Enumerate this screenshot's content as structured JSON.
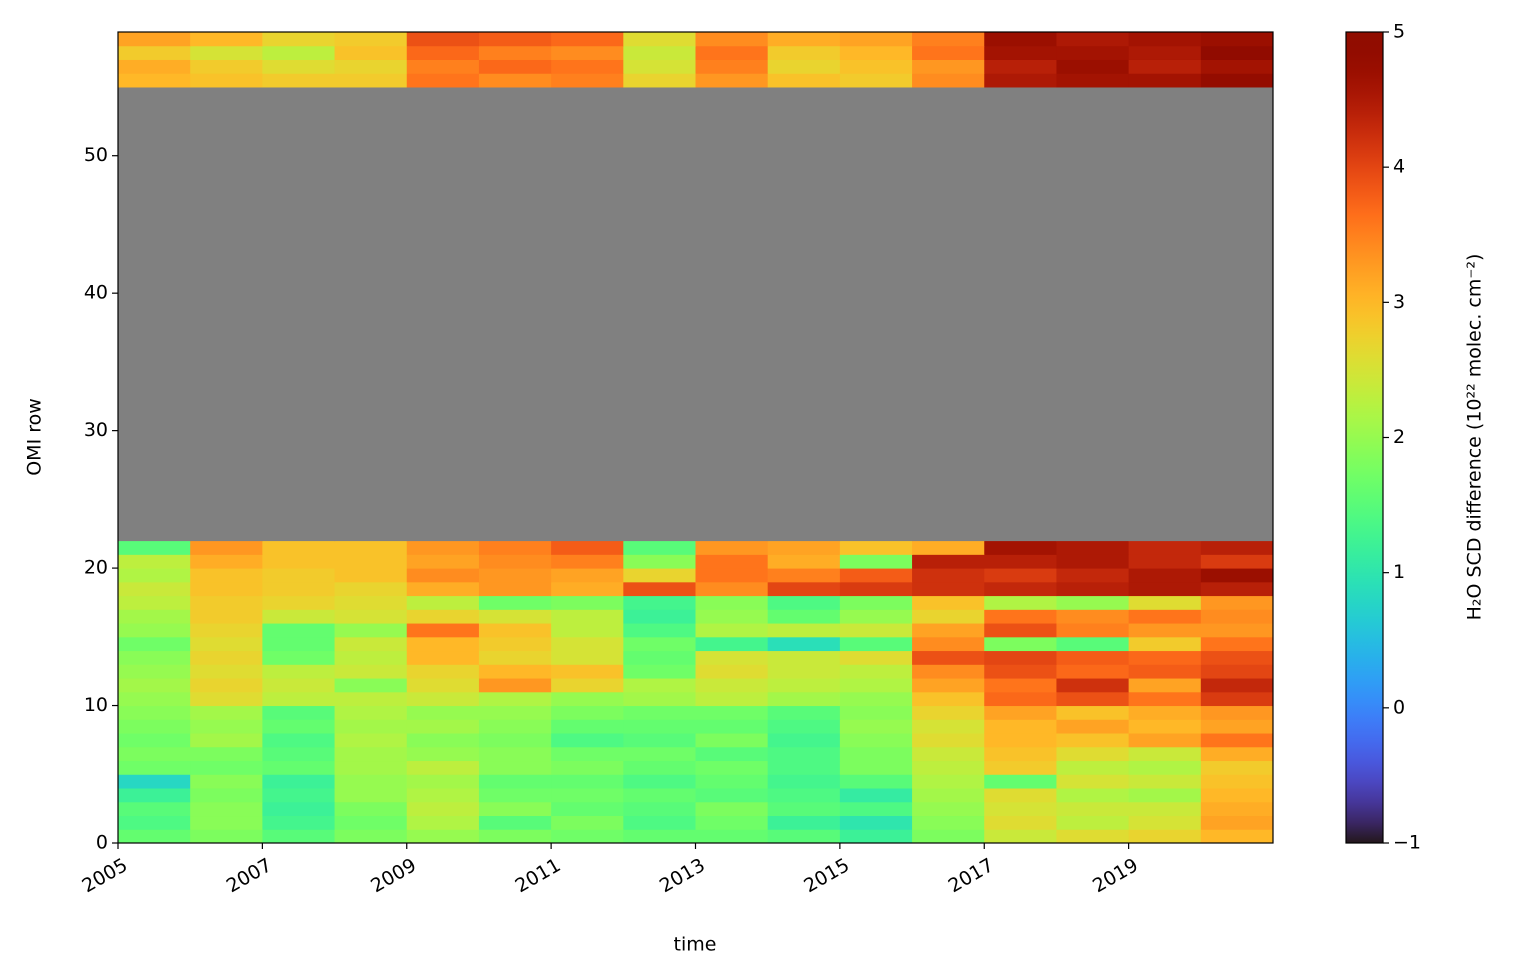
{
  "chart_data": {
    "type": "heatmap",
    "x_label": "time",
    "y_label": "OMI row",
    "colorbar_label": "H₂O SCD difference (10²² molec. cm⁻²)",
    "colormap": "turbo",
    "nan_color": "#808080",
    "clim": [
      -1,
      5
    ],
    "cticks": [
      {
        "value": -1,
        "label": "−1"
      },
      0,
      1,
      2,
      3,
      4,
      5
    ],
    "xlim": [
      2005,
      2021
    ],
    "xticks": [
      2005,
      2007,
      2009,
      2011,
      2013,
      2015,
      2017,
      2019
    ],
    "ylim": [
      0,
      59
    ],
    "yticks": [
      0,
      10,
      20,
      30,
      40,
      50
    ],
    "x": [
      2005,
      2006,
      2007,
      2008,
      2009,
      2010,
      2011,
      2012,
      2013,
      2014,
      2015,
      2016,
      2017,
      2018,
      2019,
      2020,
      2021
    ],
    "y": [
      0,
      1,
      2,
      3,
      4,
      5,
      6,
      7,
      8,
      9,
      10,
      11,
      12,
      13,
      14,
      15,
      16,
      17,
      18,
      19,
      20,
      21,
      22,
      55,
      56,
      57,
      58,
      59
    ],
    "z": [
      [
        1.6,
        1.8,
        1.5,
        1.8,
        2.0,
        1.8,
        1.7,
        1.6,
        1.6,
        1.5,
        1.2,
        1.8,
        2.4,
        2.6,
        2.7,
        3.0
      ],
      [
        1.4,
        1.9,
        1.3,
        1.7,
        2.2,
        1.5,
        1.8,
        1.4,
        1.7,
        1.2,
        1.0,
        1.9,
        2.6,
        2.3,
        2.5,
        3.2
      ],
      [
        1.5,
        1.9,
        1.2,
        1.8,
        2.3,
        1.9,
        1.6,
        1.5,
        1.8,
        1.5,
        1.4,
        2.0,
        2.5,
        2.4,
        2.4,
        3.1
      ],
      [
        1.2,
        1.8,
        1.3,
        2.0,
        2.2,
        1.7,
        1.7,
        1.6,
        1.5,
        1.4,
        1.1,
        2.1,
        2.6,
        2.2,
        2.1,
        3.0
      ],
      [
        0.8,
        1.9,
        1.2,
        2.0,
        2.1,
        1.6,
        1.6,
        1.4,
        1.6,
        1.3,
        1.5,
        2.2,
        1.6,
        2.5,
        2.4,
        2.9
      ],
      [
        1.7,
        1.7,
        1.6,
        2.1,
        2.3,
        1.9,
        1.8,
        1.6,
        1.7,
        1.4,
        1.8,
        2.3,
        2.8,
        2.3,
        2.2,
        2.8
      ],
      [
        1.8,
        1.8,
        1.5,
        2.1,
        2.0,
        1.9,
        1.7,
        1.7,
        1.5,
        1.4,
        1.8,
        2.4,
        2.9,
        2.6,
        2.4,
        3.1
      ],
      [
        1.7,
        2.1,
        1.4,
        2.2,
        1.9,
        1.8,
        1.4,
        1.5,
        1.8,
        1.3,
        1.9,
        2.6,
        3.0,
        2.9,
        3.2,
        3.6
      ],
      [
        1.8,
        2.0,
        1.6,
        2.1,
        2.1,
        1.9,
        1.6,
        1.6,
        1.6,
        1.4,
        2.0,
        2.5,
        3.0,
        3.2,
        3.0,
        3.2
      ],
      [
        1.9,
        2.1,
        1.5,
        2.2,
        2.0,
        2.0,
        1.8,
        1.7,
        1.7,
        1.5,
        1.9,
        2.7,
        3.2,
        2.9,
        3.1,
        3.3
      ],
      [
        2.0,
        2.6,
        2.3,
        2.3,
        2.4,
        2.2,
        2.0,
        2.1,
        2.3,
        2.1,
        2.0,
        2.9,
        3.7,
        3.9,
        3.6,
        4.1
      ],
      [
        2.1,
        2.7,
        2.4,
        1.9,
        2.6,
        3.3,
        2.7,
        2.2,
        2.4,
        2.3,
        2.2,
        3.2,
        3.6,
        4.2,
        3.2,
        4.3
      ],
      [
        2.0,
        2.6,
        2.3,
        2.4,
        2.7,
        3.0,
        2.9,
        1.7,
        2.6,
        2.4,
        2.3,
        3.4,
        3.9,
        3.7,
        3.8,
        4.0
      ],
      [
        1.9,
        2.7,
        1.7,
        2.3,
        3.0,
        2.7,
        2.5,
        1.6,
        2.5,
        2.4,
        2.6,
        3.9,
        4.0,
        3.8,
        3.7,
        3.9
      ],
      [
        1.7,
        2.6,
        1.6,
        2.4,
        3.0,
        2.8,
        2.5,
        1.7,
        1.3,
        0.9,
        1.5,
        3.4,
        1.8,
        1.5,
        2.8,
        3.6
      ],
      [
        2.0,
        2.7,
        1.6,
        2.0,
        3.6,
        2.9,
        2.3,
        1.4,
        2.2,
        2.3,
        2.4,
        3.2,
        3.9,
        3.5,
        3.3,
        3.3
      ],
      [
        2.1,
        2.8,
        2.4,
        2.5,
        2.7,
        2.5,
        2.3,
        1.2,
        2.0,
        1.6,
        2.0,
        2.7,
        3.6,
        3.4,
        3.6,
        3.4
      ],
      [
        2.3,
        2.8,
        2.7,
        2.6,
        2.3,
        1.7,
        1.8,
        1.3,
        1.9,
        1.4,
        1.8,
        2.9,
        2.2,
        2.0,
        2.6,
        3.3
      ],
      [
        2.4,
        2.9,
        2.8,
        2.7,
        3.1,
        3.3,
        3.1,
        3.9,
        3.4,
        4.0,
        4.1,
        4.2,
        4.3,
        4.4,
        4.5,
        4.4
      ],
      [
        2.2,
        2.9,
        2.8,
        2.9,
        3.4,
        3.3,
        3.2,
        2.7,
        3.6,
        3.5,
        3.8,
        4.2,
        4.1,
        4.3,
        4.5,
        4.7
      ],
      [
        2.3,
        3.1,
        2.9,
        2.9,
        3.2,
        3.4,
        3.5,
        1.9,
        3.6,
        3.1,
        1.8,
        4.4,
        4.4,
        4.5,
        4.3,
        4.1
      ],
      [
        1.5,
        3.3,
        2.9,
        2.9,
        3.3,
        3.5,
        3.8,
        1.5,
        3.3,
        3.2,
        2.9,
        3.1,
        4.6,
        4.5,
        4.3,
        4.4
      ],
      [
        null,
        null,
        null,
        null,
        null,
        null,
        null,
        null,
        null,
        null,
        null,
        null,
        null,
        null,
        null,
        null
      ],
      [
        3.0,
        2.9,
        2.8,
        2.8,
        3.6,
        3.4,
        3.5,
        2.7,
        3.3,
        2.9,
        2.8,
        3.4,
        4.5,
        4.6,
        4.6,
        4.8
      ],
      [
        3.1,
        2.8,
        2.6,
        2.7,
        3.5,
        3.7,
        3.6,
        2.5,
        3.5,
        2.7,
        2.9,
        3.3,
        4.4,
        4.7,
        4.4,
        4.6
      ],
      [
        2.8,
        2.5,
        2.3,
        2.9,
        3.7,
        3.5,
        3.4,
        2.4,
        3.6,
        2.8,
        3.0,
        3.6,
        4.6,
        4.6,
        4.5,
        4.9
      ],
      [
        3.2,
        3.0,
        2.7,
        2.8,
        3.9,
        3.8,
        3.7,
        2.6,
        3.4,
        3.1,
        3.2,
        3.5,
        4.7,
        4.5,
        4.6,
        4.7
      ]
    ]
  }
}
